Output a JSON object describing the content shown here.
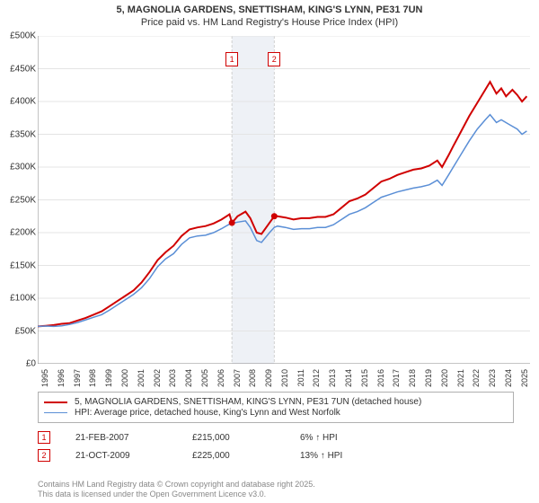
{
  "title_line1": "5, MAGNOLIA GARDENS, SNETTISHAM, KING'S LYNN, PE31 7UN",
  "title_line2": "Price paid vs. HM Land Registry's House Price Index (HPI)",
  "chart": {
    "type": "line",
    "background_color": "#ffffff",
    "grid_color": "#e4e4e4",
    "axis_color": "#888888",
    "highlight_band_color": "#eef1f6",
    "highlight_line_color": "#d0d0d0",
    "ylim": [
      0,
      500000
    ],
    "ytick_step": 50000,
    "yticks": [
      "£0",
      "£50K",
      "£100K",
      "£150K",
      "£200K",
      "£250K",
      "£300K",
      "£350K",
      "£400K",
      "£450K",
      "£500K"
    ],
    "xmin": 1995,
    "xmax": 2025.8,
    "xticks": [
      1995,
      1996,
      1997,
      1998,
      1999,
      2000,
      2001,
      2002,
      2003,
      2004,
      2005,
      2006,
      2007,
      2008,
      2009,
      2010,
      2011,
      2012,
      2013,
      2014,
      2015,
      2016,
      2017,
      2018,
      2019,
      2020,
      2021,
      2022,
      2023,
      2024,
      2025
    ],
    "series": [
      {
        "name": "property",
        "label": "5, MAGNOLIA GARDENS, SNETTISHAM, KING'S LYNN, PE31 7UN (detached house)",
        "color": "#d00000",
        "line_width": 2,
        "data": [
          [
            1995,
            57000
          ],
          [
            1995.5,
            58000
          ],
          [
            1996,
            59000
          ],
          [
            1996.5,
            61000
          ],
          [
            1997,
            62000
          ],
          [
            1997.5,
            66000
          ],
          [
            1998,
            70000
          ],
          [
            1998.5,
            75000
          ],
          [
            1999,
            80000
          ],
          [
            1999.5,
            88000
          ],
          [
            2000,
            96000
          ],
          [
            2000.5,
            104000
          ],
          [
            2001,
            112000
          ],
          [
            2001.5,
            124000
          ],
          [
            2002,
            140000
          ],
          [
            2002.5,
            158000
          ],
          [
            2003,
            170000
          ],
          [
            2003.5,
            180000
          ],
          [
            2004,
            195000
          ],
          [
            2004.5,
            205000
          ],
          [
            2005,
            208000
          ],
          [
            2005.5,
            210000
          ],
          [
            2006,
            214000
          ],
          [
            2006.5,
            220000
          ],
          [
            2007,
            228000
          ],
          [
            2007.15,
            215000
          ],
          [
            2007.5,
            225000
          ],
          [
            2008,
            232000
          ],
          [
            2008.3,
            222000
          ],
          [
            2008.7,
            200000
          ],
          [
            2009,
            198000
          ],
          [
            2009.5,
            215000
          ],
          [
            2009.8,
            225000
          ],
          [
            2010,
            225000
          ],
          [
            2010.5,
            223000
          ],
          [
            2011,
            220000
          ],
          [
            2011.5,
            222000
          ],
          [
            2012,
            222000
          ],
          [
            2012.5,
            224000
          ],
          [
            2013,
            224000
          ],
          [
            2013.5,
            228000
          ],
          [
            2014,
            238000
          ],
          [
            2014.5,
            248000
          ],
          [
            2015,
            252000
          ],
          [
            2015.5,
            258000
          ],
          [
            2016,
            268000
          ],
          [
            2016.5,
            278000
          ],
          [
            2017,
            282000
          ],
          [
            2017.5,
            288000
          ],
          [
            2018,
            292000
          ],
          [
            2018.5,
            296000
          ],
          [
            2019,
            298000
          ],
          [
            2019.5,
            302000
          ],
          [
            2020,
            310000
          ],
          [
            2020.3,
            300000
          ],
          [
            2020.7,
            318000
          ],
          [
            2021,
            332000
          ],
          [
            2021.5,
            355000
          ],
          [
            2022,
            378000
          ],
          [
            2022.5,
            398000
          ],
          [
            2023,
            418000
          ],
          [
            2023.3,
            430000
          ],
          [
            2023.7,
            412000
          ],
          [
            2024,
            420000
          ],
          [
            2024.3,
            408000
          ],
          [
            2024.7,
            418000
          ],
          [
            2025,
            410000
          ],
          [
            2025.3,
            400000
          ],
          [
            2025.6,
            408000
          ]
        ]
      },
      {
        "name": "hpi",
        "label": "HPI: Average price, detached house, King's Lynn and West Norfolk",
        "color": "#5b8fd6",
        "line_width": 1.5,
        "data": [
          [
            1995,
            57000
          ],
          [
            1995.5,
            57500
          ],
          [
            1996,
            57000
          ],
          [
            1996.5,
            58000
          ],
          [
            1997,
            60000
          ],
          [
            1997.5,
            63000
          ],
          [
            1998,
            67000
          ],
          [
            1998.5,
            71000
          ],
          [
            1999,
            75000
          ],
          [
            1999.5,
            82000
          ],
          [
            2000,
            90000
          ],
          [
            2000.5,
            98000
          ],
          [
            2001,
            106000
          ],
          [
            2001.5,
            116000
          ],
          [
            2002,
            130000
          ],
          [
            2002.5,
            148000
          ],
          [
            2003,
            160000
          ],
          [
            2003.5,
            168000
          ],
          [
            2004,
            182000
          ],
          [
            2004.5,
            192000
          ],
          [
            2005,
            195000
          ],
          [
            2005.5,
            196000
          ],
          [
            2006,
            200000
          ],
          [
            2006.5,
            206000
          ],
          [
            2007,
            213000
          ],
          [
            2007.5,
            216000
          ],
          [
            2008,
            218000
          ],
          [
            2008.3,
            208000
          ],
          [
            2008.7,
            188000
          ],
          [
            2009,
            185000
          ],
          [
            2009.5,
            200000
          ],
          [
            2009.8,
            208000
          ],
          [
            2010,
            210000
          ],
          [
            2010.5,
            208000
          ],
          [
            2011,
            205000
          ],
          [
            2011.5,
            206000
          ],
          [
            2012,
            206000
          ],
          [
            2012.5,
            208000
          ],
          [
            2013,
            208000
          ],
          [
            2013.5,
            212000
          ],
          [
            2014,
            220000
          ],
          [
            2014.5,
            228000
          ],
          [
            2015,
            232000
          ],
          [
            2015.5,
            238000
          ],
          [
            2016,
            246000
          ],
          [
            2016.5,
            254000
          ],
          [
            2017,
            258000
          ],
          [
            2017.5,
            262000
          ],
          [
            2018,
            265000
          ],
          [
            2018.5,
            268000
          ],
          [
            2019,
            270000
          ],
          [
            2019.5,
            273000
          ],
          [
            2020,
            280000
          ],
          [
            2020.3,
            272000
          ],
          [
            2020.7,
            288000
          ],
          [
            2021,
            300000
          ],
          [
            2021.5,
            320000
          ],
          [
            2022,
            340000
          ],
          [
            2022.5,
            358000
          ],
          [
            2023,
            372000
          ],
          [
            2023.3,
            380000
          ],
          [
            2023.7,
            368000
          ],
          [
            2024,
            372000
          ],
          [
            2024.5,
            365000
          ],
          [
            2025,
            358000
          ],
          [
            2025.3,
            350000
          ],
          [
            2025.6,
            355000
          ]
        ]
      }
    ],
    "markers": [
      {
        "id": "1",
        "x": 2007.15,
        "y": 215000,
        "color": "#d00000"
      },
      {
        "id": "2",
        "x": 2009.8,
        "y": 225000,
        "color": "#d00000"
      }
    ],
    "highlight_band": {
      "from": 2007.15,
      "to": 2009.8
    }
  },
  "legend": {
    "rows": [
      {
        "color": "#d00000",
        "width": 2,
        "label": "5, MAGNOLIA GARDENS, SNETTISHAM, KING'S LYNN, PE31 7UN (detached house)"
      },
      {
        "color": "#5b8fd6",
        "width": 1.5,
        "label": "HPI: Average price, detached house, King's Lynn and West Norfolk"
      }
    ]
  },
  "transactions": [
    {
      "badge": "1",
      "date": "21-FEB-2007",
      "price": "£215,000",
      "change": "6% ↑ HPI"
    },
    {
      "badge": "2",
      "date": "21-OCT-2009",
      "price": "£225,000",
      "change": "13% ↑ HPI"
    }
  ],
  "footer_line1": "Contains HM Land Registry data © Crown copyright and database right 2025.",
  "footer_line2": "This data is licensed under the Open Government Licence v3.0."
}
